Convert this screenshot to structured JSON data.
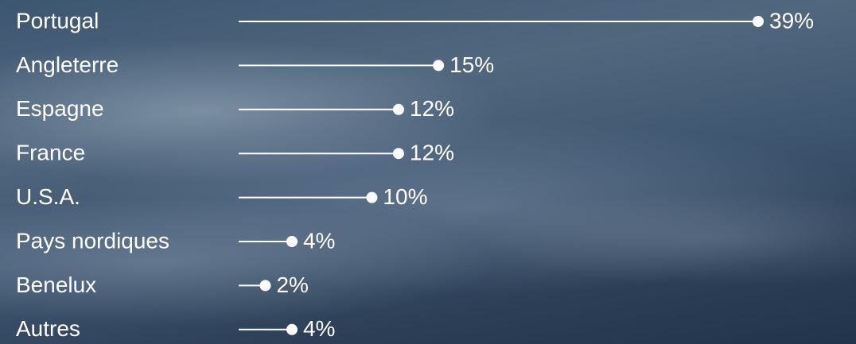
{
  "chart_data": {
    "type": "lollipop",
    "categories": [
      "Portugal",
      "Angleterre",
      "Espagne",
      "France",
      "U.S.A.",
      "Pays nordiques",
      "Benelux",
      "Autres"
    ],
    "values": [
      39,
      15,
      12,
      12,
      10,
      4,
      2,
      4
    ],
    "value_labels": [
      "39%",
      "15%",
      "12%",
      "12%",
      "10%",
      "4%",
      "2%",
      "4%"
    ],
    "color": "#ffffff"
  }
}
